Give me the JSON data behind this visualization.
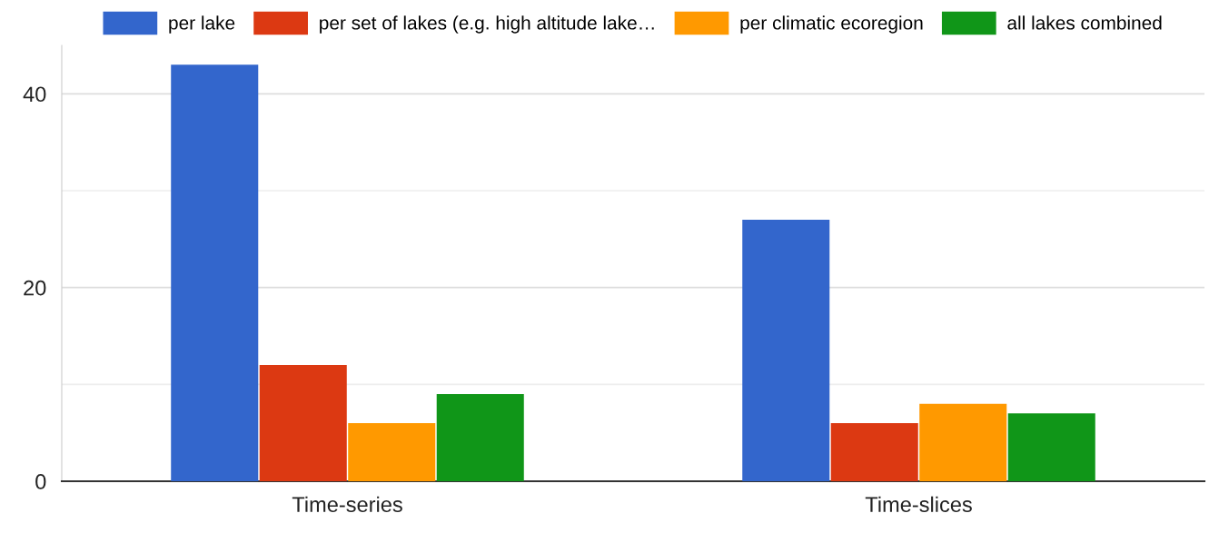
{
  "chart_data": {
    "type": "bar",
    "categories": [
      "Time-series",
      "Time-slices"
    ],
    "series": [
      {
        "name": "per lake",
        "color": "#3366cc",
        "values": [
          43,
          27
        ]
      },
      {
        "name": "per set of lakes (e.g. high altitude lake…",
        "color": "#dc3912",
        "values": [
          12,
          6
        ]
      },
      {
        "name": "per climatic ecoregion",
        "color": "#ff9900",
        "values": [
          6,
          8
        ]
      },
      {
        "name": "all lakes combined",
        "color": "#109618",
        "values": [
          9,
          7
        ]
      }
    ],
    "ylim": [
      0,
      45
    ],
    "yticks": [
      0,
      {
        "value": 10,
        "label": null
      },
      20,
      {
        "value": 30,
        "label": null
      },
      40
    ],
    "grid": "y",
    "legend": "top"
  }
}
